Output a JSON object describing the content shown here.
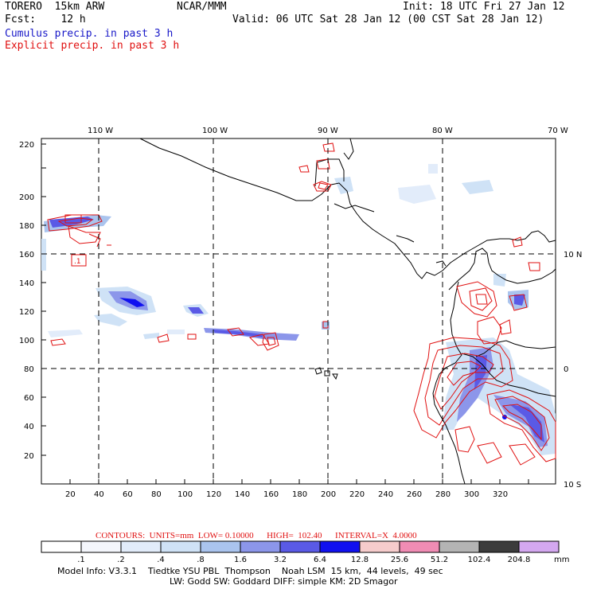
{
  "header": {
    "model": "TORERO  15km ARW",
    "center": "NCAR/MMM",
    "init": "Init: 18 UTC Fri 27 Jan 12",
    "fcst": "Fcst:    12 h",
    "valid": "Valid: 06 UTC Sat 28 Jan 12 (00 CST Sat 28 Jan 12)",
    "cumulus": "Cumulus precip. in past 3 h",
    "explicit": "Explicit precip. in past 3 h"
  },
  "colors": {
    "cumulus": "#1818c8",
    "explicit": "#e01010",
    "coast": "#000000",
    "grid": "#000000"
  },
  "lon_labels": [
    "110 W",
    "100 W",
    "90 W",
    "80 W",
    "70 W"
  ],
  "lat_labels": [
    "10 N",
    "0",
    "10 S"
  ],
  "x_ticks": [
    "20",
    "40",
    "60",
    "80",
    "100",
    "120",
    "140",
    "160",
    "180",
    "200",
    "220",
    "240",
    "260",
    "280",
    "300",
    "320"
  ],
  "y_ticks": [
    "20",
    "40",
    "60",
    "80",
    "100",
    "120",
    "140",
    "160",
    "180",
    "200",
    "220"
  ],
  "contours": {
    "label": "CONTOURS:  UNITS=mm  LOW= 0.10000      HIGH=  102.40      INTERVAL=X  4.0000",
    "box_label": ".1"
  },
  "legend": {
    "values": [
      ".1",
      ".2",
      ".4",
      ".8",
      "1.6",
      "3.2",
      "6.4",
      "12.8",
      "25.6",
      "51.2",
      "102.4",
      "204.8"
    ],
    "units": "mm",
    "colors": [
      "#ffffff",
      "#f4f6fc",
      "#e2ecfa",
      "#cfe2f6",
      "#aac4ee",
      "#8c96ea",
      "#5a5ae6",
      "#1010f0",
      "#f6cccc",
      "#f08cb4",
      "#b4b4b4",
      "#3c3c3c",
      "#d4a8f0"
    ]
  },
  "footer": {
    "line1": "Model Info: V3.3.1    Tiedtke YSU PBL  Thompson    Noah LSM  15 km,  44 levels,  49 sec",
    "line2": "LW: Godd SW: Goddard DIFF: simple KM: 2D Smagor"
  }
}
